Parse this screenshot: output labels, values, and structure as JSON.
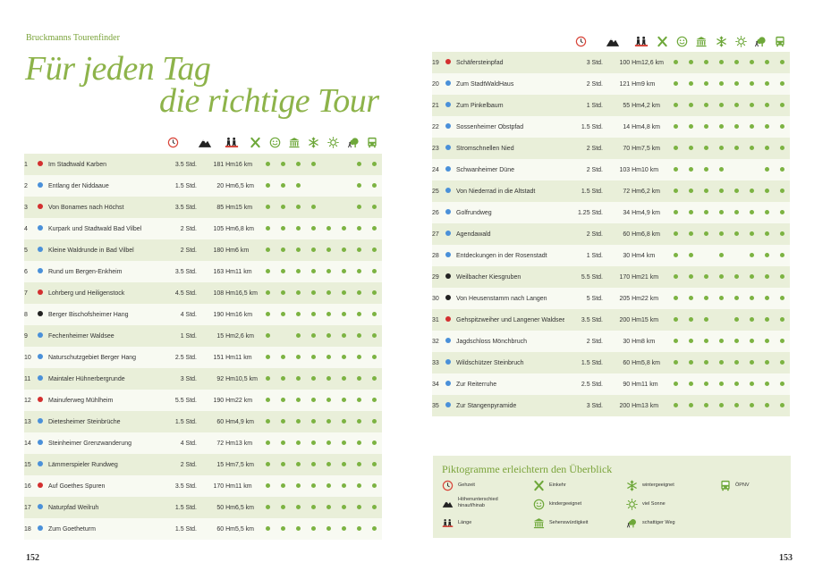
{
  "book": {
    "series": "Bruckmanns Tourenfinder",
    "title_line1": "Für jeden Tag",
    "title_line2": "die richtige Tour",
    "page_left": "152",
    "page_right": "153"
  },
  "colors": {
    "accent_green": "#7cb342",
    "title_green": "#8db34a",
    "difficulty_red": "#d32f2f",
    "difficulty_blue": "#4a90d9",
    "difficulty_black": "#222222"
  },
  "columns": [
    {
      "key": "time",
      "icon": "clock-icon"
    },
    {
      "key": "elevation",
      "icon": "mountain-icon"
    },
    {
      "key": "length",
      "icon": "hikers-icon"
    },
    {
      "key": "family",
      "icon": "utensils-icon"
    },
    {
      "key": "kids",
      "icon": "smiley-icon"
    },
    {
      "key": "sights",
      "icon": "museum-icon"
    },
    {
      "key": "winter",
      "icon": "snowflake-icon"
    },
    {
      "key": "sun",
      "icon": "sun-icon"
    },
    {
      "key": "shade",
      "icon": "tree-icon"
    },
    {
      "key": "transit",
      "icon": "bus-icon"
    }
  ],
  "tours_left": [
    {
      "n": "1",
      "diff": "red",
      "name": "Im Stadtwald Karben",
      "time": "3.5 Std.",
      "hm": "181 Hm",
      "len": "16 km",
      "f": [
        1,
        1,
        1,
        1,
        0,
        0,
        1,
        1
      ]
    },
    {
      "n": "2",
      "diff": "blue",
      "name": "Entlang der Niddaaue",
      "time": "1.5 Std.",
      "hm": "20 Hm",
      "len": "6,5 km",
      "f": [
        1,
        1,
        1,
        0,
        0,
        0,
        1,
        1
      ]
    },
    {
      "n": "3",
      "diff": "red",
      "name": "Von Bonames nach Höchst",
      "time": "3.5 Std.",
      "hm": "85 Hm",
      "len": "15 km",
      "f": [
        1,
        1,
        1,
        1,
        0,
        0,
        1,
        1
      ]
    },
    {
      "n": "4",
      "diff": "blue",
      "name": "Kurpark und Stadtwald Bad Vilbel",
      "time": "2 Std.",
      "hm": "105 Hm",
      "len": "6,8 km",
      "f": [
        1,
        1,
        1,
        1,
        1,
        1,
        1,
        1
      ]
    },
    {
      "n": "5",
      "diff": "blue",
      "name": "Kleine Waldrunde in Bad Vilbel",
      "time": "2 Std.",
      "hm": "180 Hm",
      "len": "6 km",
      "f": [
        1,
        1,
        1,
        1,
        1,
        1,
        1,
        1
      ]
    },
    {
      "n": "6",
      "diff": "blue",
      "name": "Rund um Bergen-Enkheim",
      "time": "3.5 Std.",
      "hm": "163 Hm",
      "len": "11 km",
      "f": [
        1,
        1,
        1,
        1,
        1,
        1,
        1,
        1
      ]
    },
    {
      "n": "7",
      "diff": "red",
      "name": "Lohrberg und Heiligenstock",
      "time": "4.5 Std.",
      "hm": "108 Hm",
      "len": "16,5 km",
      "f": [
        1,
        1,
        1,
        1,
        1,
        1,
        1,
        1
      ]
    },
    {
      "n": "8",
      "diff": "black",
      "name": "Berger Bischofsheimer Hang",
      "time": "4 Std.",
      "hm": "190 Hm",
      "len": "16 km",
      "f": [
        1,
        1,
        1,
        1,
        1,
        1,
        1,
        1
      ]
    },
    {
      "n": "9",
      "diff": "blue",
      "name": "Fechenheimer Waldsee",
      "time": "1 Std.",
      "hm": "15 Hm",
      "len": "2,6 km",
      "f": [
        1,
        0,
        1,
        1,
        1,
        1,
        1,
        1
      ]
    },
    {
      "n": "10",
      "diff": "blue",
      "name": "Naturschutzgebiet Berger Hang",
      "time": "2.5 Std.",
      "hm": "151 Hm",
      "len": "11 km",
      "f": [
        1,
        1,
        1,
        1,
        1,
        1,
        1,
        1
      ]
    },
    {
      "n": "11",
      "diff": "blue",
      "name": "Maintaler Hühnerbergrunde",
      "time": "3 Std.",
      "hm": "92 Hm",
      "len": "10,5 km",
      "f": [
        1,
        1,
        1,
        1,
        1,
        1,
        1,
        1
      ]
    },
    {
      "n": "12",
      "diff": "red",
      "name": "Mainuferweg Mühlheim",
      "time": "5.5 Std.",
      "hm": "190 Hm",
      "len": "22 km",
      "f": [
        1,
        1,
        1,
        1,
        1,
        1,
        1,
        1
      ]
    },
    {
      "n": "13",
      "diff": "blue",
      "name": "Dietesheimer Steinbrüche",
      "time": "1.5 Std.",
      "hm": "60 Hm",
      "len": "4,9 km",
      "f": [
        1,
        1,
        1,
        1,
        1,
        1,
        1,
        1
      ]
    },
    {
      "n": "14",
      "diff": "blue",
      "name": "Steinheimer Grenzwanderung",
      "time": "4 Std.",
      "hm": "72 Hm",
      "len": "13 km",
      "f": [
        1,
        1,
        1,
        1,
        1,
        1,
        1,
        1
      ]
    },
    {
      "n": "15",
      "diff": "blue",
      "name": "Lämmerspieler Rundweg",
      "time": "2 Std.",
      "hm": "15 Hm",
      "len": "7,5 km",
      "f": [
        1,
        1,
        1,
        1,
        1,
        1,
        1,
        1
      ]
    },
    {
      "n": "16",
      "diff": "red",
      "name": "Auf Goethes Spuren",
      "time": "3.5 Std.",
      "hm": "170 Hm",
      "len": "11 km",
      "f": [
        1,
        1,
        1,
        1,
        1,
        1,
        1,
        1
      ]
    },
    {
      "n": "17",
      "diff": "blue",
      "name": "Naturpfad Weilruh",
      "time": "1.5 Std.",
      "hm": "50 Hm",
      "len": "6,5 km",
      "f": [
        1,
        1,
        1,
        1,
        1,
        1,
        1,
        1
      ]
    },
    {
      "n": "18",
      "diff": "blue",
      "name": "Zum Goetheturm",
      "time": "1.5 Std.",
      "hm": "60 Hm",
      "len": "5,5 km",
      "f": [
        1,
        1,
        1,
        1,
        1,
        1,
        1,
        1
      ]
    }
  ],
  "tours_right": [
    {
      "n": "19",
      "diff": "red",
      "name": "Schäfersteinpfad",
      "time": "3 Std.",
      "hm": "100 Hm",
      "len": "12,6 km",
      "f": [
        1,
        1,
        1,
        1,
        1,
        1,
        1,
        1
      ]
    },
    {
      "n": "20",
      "diff": "blue",
      "name": "Zum StadtWaldHaus",
      "time": "2 Std.",
      "hm": "121 Hm",
      "len": "9 km",
      "f": [
        1,
        1,
        1,
        1,
        1,
        1,
        1,
        1
      ]
    },
    {
      "n": "21",
      "diff": "blue",
      "name": "Zum Pinkelbaum",
      "time": "1 Std.",
      "hm": "55 Hm",
      "len": "4,2 km",
      "f": [
        1,
        1,
        1,
        1,
        1,
        1,
        1,
        1
      ]
    },
    {
      "n": "22",
      "diff": "blue",
      "name": "Sossenheimer Obstpfad",
      "time": "1.5 Std.",
      "hm": "14 Hm",
      "len": "4,8 km",
      "f": [
        1,
        1,
        1,
        1,
        1,
        1,
        1,
        1
      ]
    },
    {
      "n": "23",
      "diff": "blue",
      "name": "Stromschnellen Nied",
      "time": "2 Std.",
      "hm": "70 Hm",
      "len": "7,5 km",
      "f": [
        1,
        1,
        1,
        1,
        1,
        1,
        1,
        1
      ]
    },
    {
      "n": "24",
      "diff": "blue",
      "name": "Schwanheimer Düne",
      "time": "2 Std.",
      "hm": "103 Hm",
      "len": "10 km",
      "f": [
        1,
        1,
        1,
        1,
        0,
        0,
        1,
        1
      ]
    },
    {
      "n": "25",
      "diff": "blue",
      "name": "Von Niederrad in die Altstadt",
      "time": "1.5 Std.",
      "hm": "72 Hm",
      "len": "6,2 km",
      "f": [
        1,
        1,
        1,
        1,
        1,
        1,
        1,
        1
      ]
    },
    {
      "n": "26",
      "diff": "blue",
      "name": "Golfrundweg",
      "time": "1.25 Std.",
      "hm": "34 Hm",
      "len": "4,9 km",
      "f": [
        1,
        1,
        1,
        1,
        1,
        1,
        1,
        1
      ]
    },
    {
      "n": "27",
      "diff": "blue",
      "name": "Agendawald",
      "time": "2 Std.",
      "hm": "60 Hm",
      "len": "6,8 km",
      "f": [
        1,
        1,
        1,
        1,
        1,
        1,
        1,
        1
      ]
    },
    {
      "n": "28",
      "diff": "blue",
      "name": "Entdeckungen in der Rosenstadt",
      "time": "1 Std.",
      "hm": "30 Hm",
      "len": "4 km",
      "f": [
        1,
        1,
        0,
        1,
        0,
        1,
        1,
        1
      ]
    },
    {
      "n": "29",
      "diff": "black",
      "name": "Weilbacher Kiesgruben",
      "time": "5.5 Std.",
      "hm": "170 Hm",
      "len": "21 km",
      "f": [
        1,
        1,
        1,
        1,
        1,
        1,
        1,
        1
      ]
    },
    {
      "n": "30",
      "diff": "black",
      "name": "Von Heusenstamm nach Langen",
      "time": "5 Std.",
      "hm": "205 Hm",
      "len": "22 km",
      "f": [
        1,
        1,
        1,
        1,
        1,
        1,
        1,
        1
      ]
    },
    {
      "n": "31",
      "diff": "red",
      "name": "Gehspitzweiher und Langener Waldsee",
      "time": "3.5 Std.",
      "hm": "200 Hm",
      "len": "15 km",
      "f": [
        1,
        1,
        1,
        0,
        1,
        1,
        1,
        1
      ]
    },
    {
      "n": "32",
      "diff": "blue",
      "name": "Jagdschloss Mönchbruch",
      "time": "2 Std.",
      "hm": "30 Hm",
      "len": "8 km",
      "f": [
        1,
        1,
        1,
        1,
        1,
        1,
        1,
        1
      ]
    },
    {
      "n": "33",
      "diff": "blue",
      "name": "Wildschützer Steinbruch",
      "time": "1.5 Std.",
      "hm": "60 Hm",
      "len": "5,8 km",
      "f": [
        1,
        1,
        1,
        1,
        1,
        1,
        1,
        1
      ]
    },
    {
      "n": "34",
      "diff": "blue",
      "name": "Zur Reiterruhe",
      "time": "2.5 Std.",
      "hm": "90 Hm",
      "len": "11 km",
      "f": [
        1,
        1,
        1,
        1,
        1,
        1,
        1,
        1
      ]
    },
    {
      "n": "35",
      "diff": "blue",
      "name": "Zur Stangenpyramide",
      "time": "3 Std.",
      "hm": "200 Hm",
      "len": "13 km",
      "f": [
        1,
        1,
        1,
        1,
        1,
        1,
        1,
        1
      ]
    }
  ],
  "legend": {
    "title": "Piktogramme erleichtern den Überblick",
    "items": [
      {
        "icon": "clock-icon",
        "label": "Gehzeit"
      },
      {
        "icon": "mountain-icon",
        "label": "Höhenunterschied hinauf/hinab"
      },
      {
        "icon": "hikers-icon",
        "label": "Länge"
      },
      {
        "icon": "utensils-icon",
        "label": "Einkehr"
      },
      {
        "icon": "smiley-icon",
        "label": "kindergeeignet"
      },
      {
        "icon": "museum-icon",
        "label": "Sehenswürdigkeit"
      },
      {
        "icon": "snowflake-icon",
        "label": "wintergeeignet"
      },
      {
        "icon": "sun-icon",
        "label": "viel Sonne"
      },
      {
        "icon": "tree-icon",
        "label": "schattiger Weg"
      },
      {
        "icon": "bus-icon",
        "label": "ÖPNV"
      }
    ]
  }
}
